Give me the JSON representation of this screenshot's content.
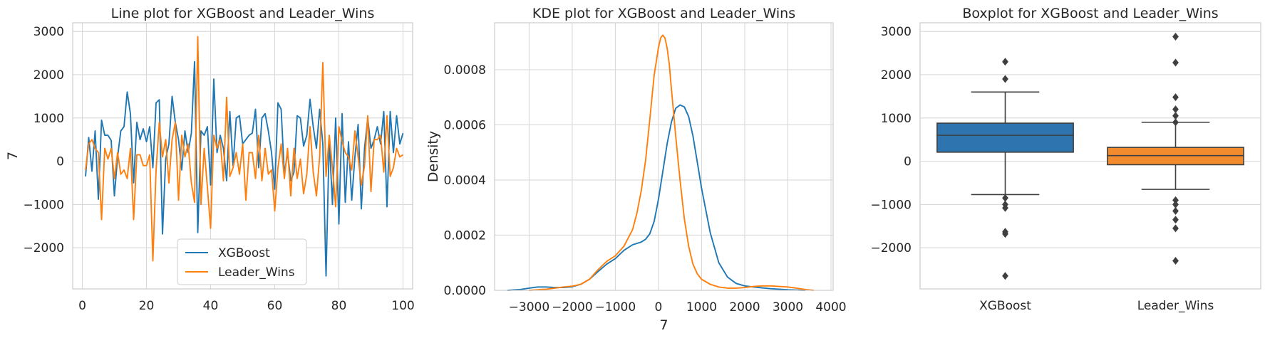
{
  "chart_data": [
    {
      "type": "line",
      "title": "Line plot for XGBoost and Leader_Wins",
      "xlabel": "",
      "ylabel": "7",
      "xlim": [
        -3,
        103
      ],
      "ylim": [
        -2950,
        3200
      ],
      "xticks": [
        0,
        20,
        40,
        60,
        80,
        100
      ],
      "xtick_labels": [
        "0",
        "20",
        "40",
        "60",
        "80",
        "100"
      ],
      "yticks": [
        -2000,
        -1000,
        0,
        1000,
        2000,
        3000
      ],
      "ytick_labels": [
        "−2000",
        "−1000",
        "0",
        "1000",
        "2000",
        "3000"
      ],
      "legend": {
        "position": "lower-center",
        "entries": [
          "XGBoost",
          "Leader_Wins"
        ]
      },
      "x": [
        1,
        2,
        3,
        4,
        5,
        6,
        7,
        8,
        9,
        10,
        11,
        12,
        13,
        14,
        15,
        16,
        17,
        18,
        19,
        20,
        21,
        22,
        23,
        24,
        25,
        26,
        27,
        28,
        29,
        30,
        31,
        32,
        33,
        34,
        35,
        36,
        37,
        38,
        39,
        40,
        41,
        42,
        43,
        44,
        45,
        46,
        47,
        48,
        49,
        50,
        51,
        52,
        53,
        54,
        55,
        56,
        57,
        58,
        59,
        60,
        61,
        62,
        63,
        64,
        65,
        66,
        67,
        68,
        69,
        70,
        71,
        72,
        73,
        74,
        75,
        76,
        77,
        78,
        79,
        80,
        81,
        82,
        83,
        84,
        85,
        86,
        87,
        88,
        89,
        90,
        91,
        92,
        93,
        94,
        95,
        96,
        97,
        98,
        99,
        100
      ],
      "series": [
        {
          "name": "XGBoost",
          "color": "#1f77b4",
          "values": [
            -350,
            550,
            -230,
            700,
            -880,
            950,
            600,
            600,
            480,
            -800,
            100,
            700,
            800,
            1600,
            1100,
            -500,
            900,
            500,
            750,
            450,
            800,
            -150,
            1350,
            1420,
            -1680,
            50,
            400,
            1500,
            900,
            500,
            -200,
            700,
            200,
            650,
            2300,
            -1650,
            700,
            600,
            800,
            -550,
            1900,
            200,
            600,
            300,
            -450,
            1150,
            -100,
            1000,
            1050,
            400,
            500,
            600,
            650,
            1200,
            -150,
            1000,
            1100,
            700,
            200,
            -650,
            1350,
            1200,
            -300,
            200,
            -450,
            -250,
            1050,
            1000,
            350,
            600,
            1430,
            800,
            300,
            1200,
            400,
            -2650,
            500,
            -1000,
            1000,
            -1450,
            1100,
            -950,
            450,
            -900,
            100,
            850,
            -1100,
            300,
            1000,
            300,
            500,
            800,
            400,
            1150,
            -1050,
            1150,
            200,
            1050,
            400,
            650
          ]
        },
        {
          "name": "Leader_Wins",
          "color": "#ff7f0e",
          "values": [
            -200,
            400,
            500,
            300,
            200,
            -1350,
            300,
            50,
            300,
            -400,
            200,
            -300,
            -200,
            -400,
            300,
            -1350,
            150,
            150,
            -100,
            -100,
            150,
            -2300,
            -200,
            900,
            100,
            500,
            -500,
            500,
            900,
            -900,
            600,
            100,
            400,
            -500,
            -950,
            2880,
            -1000,
            300,
            -600,
            -1550,
            600,
            300,
            500,
            -450,
            1480,
            -350,
            -150,
            200,
            -300,
            400,
            -900,
            200,
            200,
            -400,
            600,
            -450,
            300,
            -300,
            -200,
            -1150,
            -150,
            400,
            -400,
            300,
            -800,
            300,
            -400,
            50,
            -750,
            -300,
            800,
            -250,
            -800,
            100,
            2280,
            -350,
            600,
            -150,
            -1050,
            800,
            450,
            200,
            100,
            -200,
            700,
            100,
            -550,
            -100,
            1050,
            -700,
            500,
            500,
            600,
            -250,
            1050,
            -350,
            -150,
            300,
            100,
            150
          ]
        }
      ]
    },
    {
      "type": "line",
      "subtype": "kde",
      "title": "KDE plot for XGBoost and Leader_Wins",
      "xlabel": "7",
      "ylabel": "Density",
      "xlim": [
        -3800,
        4050
      ],
      "ylim": [
        0,
        0.00097
      ],
      "xticks": [
        -3000,
        -2000,
        -1000,
        0,
        1000,
        2000,
        3000,
        4000
      ],
      "xtick_labels": [
        "−3000",
        "−2000",
        "−1000",
        "0",
        "1000",
        "2000",
        "3000",
        "4000"
      ],
      "yticks": [
        0,
        0.0002,
        0.0004,
        0.0006,
        0.0008
      ],
      "ytick_labels": [
        "0.0000",
        "0.0002",
        "0.0004",
        "0.0006",
        "0.0008"
      ],
      "series": [
        {
          "name": "XGBoost",
          "color": "#1f77b4",
          "x": [
            -3500,
            -3200,
            -3000,
            -2800,
            -2600,
            -2400,
            -2200,
            -2000,
            -1800,
            -1600,
            -1400,
            -1200,
            -1000,
            -800,
            -600,
            -400,
            -300,
            -200,
            -100,
            0,
            100,
            200,
            300,
            400,
            500,
            600,
            700,
            800,
            900,
            1000,
            1200,
            1400,
            1600,
            1800,
            2000,
            2200,
            2400,
            2600,
            2800,
            3000,
            3200,
            3400
          ],
          "values": [
            0,
            3e-06,
            8e-06,
            1.2e-05,
            1.2e-05,
            1e-05,
            1e-05,
            1.3e-05,
            2.2e-05,
            4e-05,
            6.8e-05,
            9.5e-05,
            0.000115,
            0.000145,
            0.000165,
            0.000175,
            0.000185,
            0.000205,
            0.00025,
            0.00033,
            0.00043,
            0.00053,
            0.00061,
            0.00066,
            0.000672,
            0.000665,
            0.00063,
            0.00056,
            0.000465,
            0.00037,
            0.00021,
            0.0001,
            4.8e-05,
            2.5e-05,
            1.6e-05,
            1.2e-05,
            9e-06,
            6e-06,
            4e-06,
            2e-06,
            1e-06,
            0
          ]
        },
        {
          "name": "Leader_Wins",
          "color": "#ff7f0e",
          "x": [
            -3000,
            -2800,
            -2600,
            -2400,
            -2200,
            -2000,
            -1800,
            -1600,
            -1400,
            -1200,
            -1000,
            -800,
            -600,
            -500,
            -400,
            -300,
            -200,
            -100,
            0,
            50,
            100,
            150,
            200,
            250,
            300,
            400,
            500,
            600,
            700,
            800,
            900,
            1000,
            1200,
            1400,
            1600,
            1800,
            2000,
            2200,
            2400,
            2600,
            2800,
            3000,
            3200,
            3400,
            3600
          ],
          "values": [
            0,
            2e-06,
            4e-06,
            8e-06,
            1.2e-05,
            1.5e-05,
            2.2e-05,
            4e-05,
            7.5e-05,
            0.000105,
            0.000125,
            0.00016,
            0.00022,
            0.00028,
            0.00036,
            0.00047,
            0.00062,
            0.00078,
            0.00088,
            0.000915,
            0.000925,
            0.000915,
            0.00088,
            0.00082,
            0.00073,
            0.00056,
            0.0004,
            0.00026,
            0.00016,
            9.5e-05,
            6e-05,
            4e-05,
            2.2e-05,
            1.2e-05,
            8e-06,
            8e-06,
            1e-05,
            1.4e-05,
            1.6e-05,
            1.6e-05,
            1.4e-05,
            1.2e-05,
            8e-06,
            3e-06,
            0
          ]
        }
      ]
    },
    {
      "type": "box",
      "title": "Boxplot for XGBoost and Leader_Wins",
      "xlabel": "",
      "ylabel": "7",
      "ylim": [
        -2950,
        3200
      ],
      "yticks": [
        -2000,
        -1000,
        0,
        1000,
        2000,
        3000
      ],
      "ytick_labels": [
        "−2000",
        "−1000",
        "0",
        "1000",
        "2000",
        "3000"
      ],
      "categories": [
        "XGBoost",
        "Leader_Wins"
      ],
      "boxes": [
        {
          "name": "XGBoost",
          "color": "#2e75b0",
          "whisker_low": -770,
          "q1": 210,
          "median": 600,
          "q3": 880,
          "whisker_high": 1600,
          "outliers": [
            2300,
            1900,
            -850,
            -1000,
            -1080,
            -1630,
            -1680,
            -2650
          ]
        },
        {
          "name": "Leader_Wins",
          "color": "#f28a2e",
          "whisker_low": -650,
          "q1": -80,
          "median": 130,
          "q3": 320,
          "whisker_high": 900,
          "outliers": [
            2880,
            2280,
            1480,
            1200,
            1050,
            900,
            -900,
            -1000,
            -1150,
            -1350,
            -1550,
            -2300
          ]
        }
      ]
    }
  ]
}
